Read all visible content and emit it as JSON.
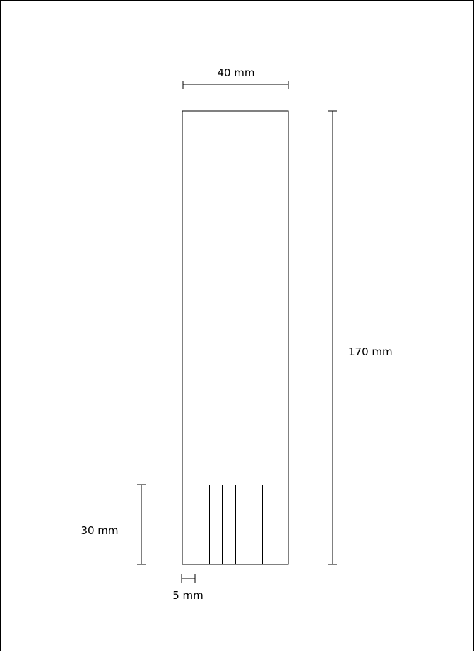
{
  "diagram": {
    "dimensions": {
      "width_label": "40 mm",
      "height_label": "170 mm",
      "fringe_height_label": "30 mm",
      "strip_width_label": "5 mm"
    },
    "fringe_cut_count": 7
  }
}
